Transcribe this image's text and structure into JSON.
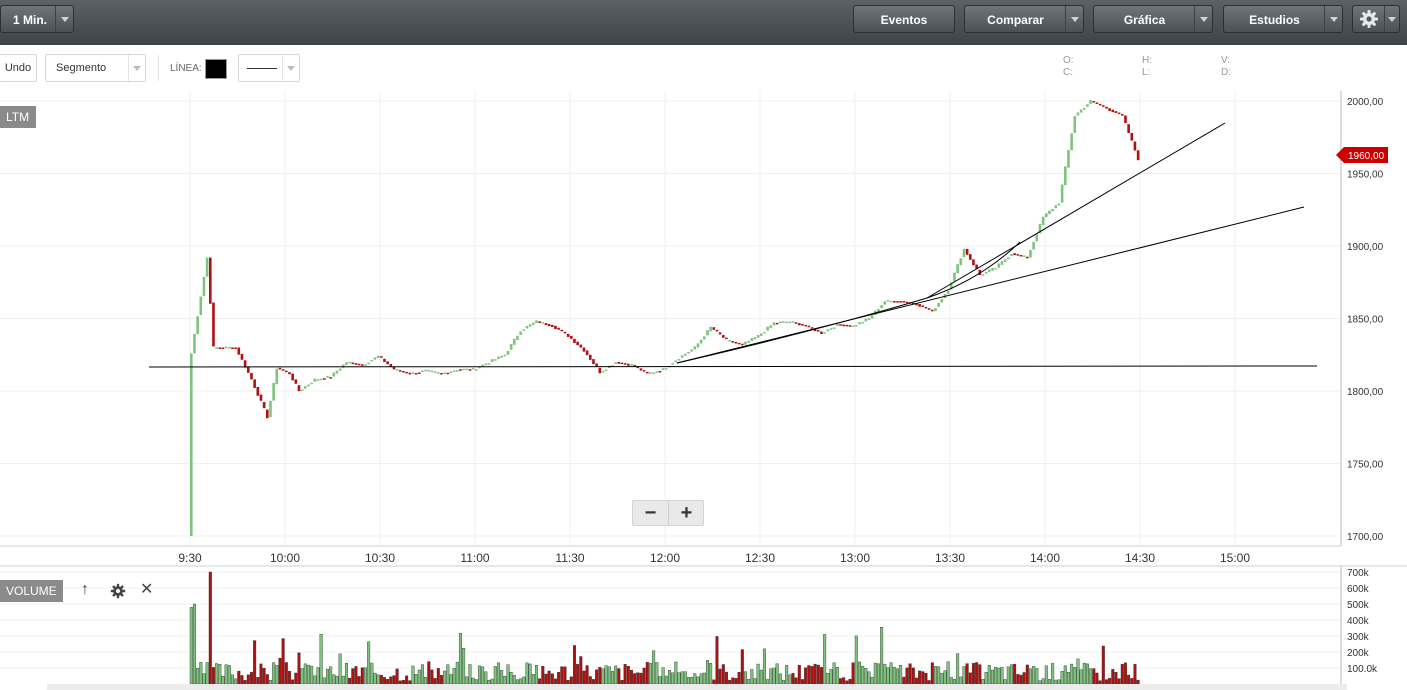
{
  "topbar": {
    "interval": "1 Min.",
    "eventos": "Eventos",
    "comparar": "Comparar",
    "grafica": "Gráfica",
    "estudios": "Estudios",
    "settings_icon": "gear-icon"
  },
  "toolbar": {
    "undo": "Undo",
    "tool": "Segmento",
    "line_label": "LÍNEA:",
    "line_color": "#000000"
  },
  "ohlc": {
    "o": "O:",
    "h": "H:",
    "v": "V:",
    "c": "C:",
    "l": "L:",
    "d": "D:"
  },
  "panels": {
    "price_tag": "LTM",
    "volume_tag": "VOLUME"
  },
  "current_price": "1960,00",
  "colors": {
    "up": "#7cc57c",
    "down": "#b01010",
    "price_marker": "#cc0000"
  },
  "chart_data": {
    "type": "candlestick",
    "x_ticks": [
      "9:30",
      "10:00",
      "10:30",
      "11:00",
      "11:30",
      "12:00",
      "12:30",
      "13:00",
      "13:30",
      "14:00",
      "14:30",
      "15:00"
    ],
    "y_ticks": [
      "2000,00",
      "1950,00",
      "1900,00",
      "1850,00",
      "1800,00",
      "1750,00",
      "1700,00"
    ],
    "ylim": [
      1700,
      2000
    ],
    "price_path": [
      [
        "9:30",
        1700
      ],
      [
        "9:31",
        1826
      ],
      [
        "9:36",
        1892
      ],
      [
        "9:38",
        1830
      ],
      [
        "9:45",
        1830
      ],
      [
        "9:50",
        1808
      ],
      [
        "9:55",
        1782
      ],
      [
        "9:58",
        1816
      ],
      [
        "10:02",
        1812
      ],
      [
        "10:05",
        1800
      ],
      [
        "10:10",
        1808
      ],
      [
        "10:15",
        1810
      ],
      [
        "10:20",
        1820
      ],
      [
        "10:25",
        1818
      ],
      [
        "10:30",
        1824
      ],
      [
        "10:35",
        1815
      ],
      [
        "10:40",
        1812
      ],
      [
        "10:45",
        1814
      ],
      [
        "10:50",
        1812
      ],
      [
        "10:55",
        1815
      ],
      [
        "11:00",
        1815
      ],
      [
        "11:05",
        1820
      ],
      [
        "11:10",
        1825
      ],
      [
        "11:15",
        1842
      ],
      [
        "11:20",
        1848
      ],
      [
        "11:25",
        1845
      ],
      [
        "11:30",
        1838
      ],
      [
        "11:35",
        1828
      ],
      [
        "11:40",
        1813
      ],
      [
        "11:45",
        1820
      ],
      [
        "11:50",
        1818
      ],
      [
        "11:55",
        1812
      ],
      [
        "12:00",
        1815
      ],
      [
        "12:05",
        1823
      ],
      [
        "12:10",
        1830
      ],
      [
        "12:15",
        1844
      ],
      [
        "12:20",
        1835
      ],
      [
        "12:25",
        1832
      ],
      [
        "12:30",
        1838
      ],
      [
        "12:35",
        1847
      ],
      [
        "12:40",
        1848
      ],
      [
        "12:45",
        1845
      ],
      [
        "12:50",
        1840
      ],
      [
        "12:55",
        1846
      ],
      [
        "13:00",
        1845
      ],
      [
        "13:05",
        1850
      ],
      [
        "13:10",
        1862
      ],
      [
        "13:15",
        1862
      ],
      [
        "13:20",
        1860
      ],
      [
        "13:25",
        1855
      ],
      [
        "13:30",
        1870
      ],
      [
        "13:35",
        1898
      ],
      [
        "13:40",
        1880
      ],
      [
        "13:45",
        1885
      ],
      [
        "13:50",
        1895
      ],
      [
        "13:55",
        1892
      ],
      [
        "14:00",
        1920
      ],
      [
        "14:05",
        1930
      ],
      [
        "14:10",
        1990
      ],
      [
        "14:15",
        2000
      ],
      [
        "14:20",
        1995
      ],
      [
        "14:25",
        1990
      ],
      [
        "14:30",
        1960
      ]
    ],
    "volume": {
      "y_ticks": [
        "700k",
        "600k",
        "500k",
        "400k",
        "300k",
        "200k",
        "100.0k"
      ],
      "ylim": [
        0,
        700000
      ]
    }
  }
}
